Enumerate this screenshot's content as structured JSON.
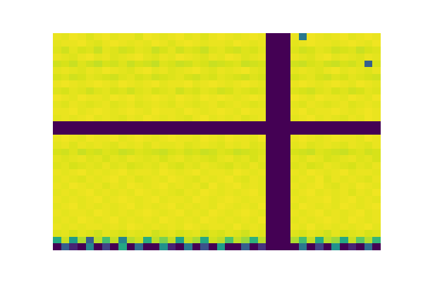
{
  "chart_data": {
    "type": "heatmap",
    "color": "Viridis",
    "tick_labels": false,
    "zlim": [
      0,
      100
    ],
    "cells": [
      [
        97,
        96,
        98,
        97,
        95,
        97,
        98,
        96,
        97,
        97,
        95,
        98,
        97,
        96,
        97,
        98,
        96,
        97,
        95,
        97,
        98,
        97,
        96,
        97,
        98,
        97,
        0,
        0,
        0,
        97,
        40,
        98,
        97,
        96,
        97,
        98,
        96,
        97,
        98,
        97
      ],
      [
        96,
        97,
        97,
        98,
        96,
        95,
        97,
        98,
        97,
        96,
        97,
        96,
        98,
        97,
        95,
        97,
        98,
        97,
        96,
        97,
        97,
        96,
        98,
        97,
        96,
        97,
        0,
        0,
        0,
        96,
        97,
        98,
        97,
        97,
        96,
        97,
        98,
        97,
        96,
        98
      ],
      [
        95,
        93,
        96,
        94,
        95,
        92,
        96,
        95,
        93,
        94,
        96,
        95,
        92,
        94,
        96,
        93,
        95,
        94,
        92,
        95,
        96,
        94,
        93,
        95,
        94,
        96,
        0,
        0,
        0,
        95,
        93,
        94,
        96,
        95,
        93,
        94,
        95,
        92,
        94,
        95
      ],
      [
        97,
        96,
        95,
        97,
        98,
        96,
        97,
        95,
        96,
        97,
        98,
        96,
        95,
        97,
        96,
        98,
        97,
        96,
        95,
        97,
        96,
        98,
        97,
        95,
        96,
        97,
        0,
        0,
        0,
        97,
        96,
        95,
        97,
        98,
        96,
        97,
        96,
        95,
        97,
        96
      ],
      [
        93,
        94,
        92,
        95,
        93,
        91,
        94,
        93,
        95,
        92,
        94,
        93,
        91,
        95,
        94,
        92,
        93,
        95,
        94,
        92,
        93,
        94,
        95,
        92,
        93,
        94,
        0,
        0,
        0,
        93,
        92,
        94,
        95,
        93,
        92,
        94,
        93,
        95,
        30,
        94
      ],
      [
        96,
        97,
        96,
        95,
        97,
        96,
        98,
        97,
        96,
        95,
        97,
        98,
        96,
        97,
        95,
        96,
        97,
        98,
        96,
        95,
        97,
        96,
        97,
        98,
        96,
        95,
        0,
        0,
        0,
        96,
        97,
        96,
        95,
        97,
        98,
        96,
        97,
        96,
        95,
        97
      ],
      [
        94,
        95,
        93,
        94,
        96,
        95,
        94,
        93,
        95,
        96,
        94,
        95,
        93,
        94,
        95,
        96,
        94,
        93,
        95,
        94,
        96,
        95,
        94,
        93,
        95,
        94,
        0,
        0,
        0,
        94,
        95,
        96,
        94,
        93,
        95,
        94,
        96,
        95,
        94,
        93
      ],
      [
        97,
        98,
        97,
        96,
        97,
        98,
        97,
        96,
        98,
        97,
        96,
        97,
        98,
        96,
        97,
        97,
        98,
        96,
        97,
        98,
        97,
        96,
        97,
        98,
        97,
        96,
        0,
        0,
        0,
        97,
        98,
        97,
        96,
        97,
        98,
        97,
        96,
        98,
        97,
        96
      ],
      [
        95,
        94,
        96,
        95,
        93,
        95,
        96,
        94,
        95,
        93,
        95,
        96,
        94,
        95,
        96,
        93,
        95,
        94,
        96,
        95,
        93,
        94,
        96,
        95,
        94,
        95,
        0,
        0,
        0,
        95,
        94,
        93,
        95,
        96,
        94,
        95,
        93,
        94,
        96,
        95
      ],
      [
        98,
        97,
        96,
        98,
        97,
        97,
        96,
        98,
        97,
        98,
        96,
        97,
        98,
        97,
        96,
        98,
        97,
        96,
        98,
        97,
        98,
        97,
        96,
        97,
        98,
        97,
        0,
        0,
        0,
        98,
        97,
        96,
        98,
        97,
        97,
        96,
        98,
        97,
        96,
        98
      ],
      [
        96,
        95,
        97,
        96,
        95,
        96,
        97,
        95,
        96,
        97,
        95,
        96,
        97,
        96,
        95,
        97,
        96,
        95,
        96,
        97,
        95,
        96,
        97,
        96,
        95,
        96,
        0,
        0,
        0,
        96,
        95,
        97,
        96,
        95,
        96,
        97,
        95,
        96,
        97,
        96
      ],
      [
        97,
        97,
        98,
        96,
        97,
        98,
        97,
        96,
        97,
        98,
        97,
        96,
        98,
        97,
        97,
        96,
        98,
        97,
        96,
        97,
        98,
        97,
        96,
        98,
        97,
        97,
        0,
        0,
        0,
        97,
        98,
        96,
        97,
        97,
        98,
        97,
        96,
        97,
        98,
        97
      ],
      [
        96,
        97,
        96,
        97,
        98,
        96,
        97,
        96,
        95,
        97,
        96,
        98,
        97,
        96,
        97,
        96,
        95,
        97,
        98,
        96,
        97,
        96,
        97,
        95,
        96,
        97,
        0,
        0,
        0,
        96,
        97,
        98,
        96,
        97,
        96,
        95,
        97,
        96,
        98,
        97
      ],
      [
        0,
        0,
        0,
        0,
        0,
        0,
        0,
        0,
        0,
        0,
        0,
        0,
        0,
        0,
        0,
        0,
        0,
        0,
        0,
        0,
        0,
        0,
        0,
        0,
        0,
        0,
        0,
        0,
        0,
        0,
        0,
        0,
        0,
        0,
        0,
        0,
        0,
        0,
        0,
        0
      ],
      [
        0,
        0,
        0,
        0,
        0,
        0,
        0,
        0,
        0,
        0,
        0,
        0,
        0,
        0,
        0,
        0,
        0,
        0,
        0,
        0,
        0,
        0,
        0,
        0,
        0,
        0,
        0,
        0,
        0,
        0,
        0,
        0,
        0,
        0,
        0,
        0,
        0,
        0,
        0,
        0
      ],
      [
        97,
        98,
        97,
        96,
        98,
        97,
        97,
        98,
        96,
        97,
        98,
        97,
        96,
        97,
        98,
        97,
        97,
        96,
        98,
        97,
        96,
        98,
        97,
        97,
        96,
        98,
        0,
        0,
        0,
        97,
        98,
        97,
        96,
        97,
        98,
        97,
        97,
        96,
        98,
        97
      ],
      [
        96,
        97,
        95,
        97,
        96,
        97,
        96,
        95,
        97,
        96,
        97,
        95,
        97,
        96,
        96,
        97,
        95,
        96,
        97,
        96,
        95,
        97,
        96,
        97,
        95,
        96,
        0,
        0,
        0,
        96,
        97,
        95,
        96,
        97,
        96,
        95,
        97,
        96,
        95,
        97
      ],
      [
        94,
        93,
        95,
        92,
        94,
        93,
        95,
        94,
        92,
        93,
        95,
        94,
        93,
        92,
        94,
        95,
        93,
        94,
        92,
        93,
        95,
        94,
        92,
        93,
        94,
        95,
        0,
        0,
        0,
        94,
        93,
        92,
        95,
        94,
        93,
        92,
        94,
        95,
        93,
        94
      ],
      [
        96,
        95,
        96,
        97,
        95,
        96,
        94,
        96,
        95,
        97,
        96,
        95,
        96,
        94,
        96,
        97,
        95,
        96,
        95,
        94,
        96,
        97,
        95,
        96,
        94,
        96,
        0,
        0,
        0,
        96,
        95,
        97,
        96,
        94,
        95,
        96,
        97,
        95,
        96,
        94
      ],
      [
        95,
        96,
        94,
        95,
        96,
        95,
        97,
        95,
        96,
        94,
        95,
        96,
        95,
        97,
        95,
        94,
        96,
        95,
        97,
        96,
        95,
        94,
        96,
        95,
        97,
        95,
        0,
        0,
        0,
        95,
        96,
        94,
        95,
        97,
        96,
        95,
        94,
        96,
        95,
        97
      ],
      [
        97,
        96,
        97,
        98,
        96,
        97,
        96,
        97,
        98,
        96,
        97,
        97,
        96,
        98,
        97,
        96,
        97,
        98,
        96,
        97,
        97,
        96,
        98,
        97,
        96,
        97,
        0,
        0,
        0,
        97,
        96,
        98,
        97,
        96,
        97,
        98,
        96,
        97,
        97,
        96
      ],
      [
        96,
        97,
        96,
        95,
        97,
        96,
        97,
        98,
        96,
        97,
        95,
        96,
        97,
        96,
        98,
        97,
        96,
        95,
        97,
        96,
        97,
        98,
        96,
        95,
        97,
        96,
        0,
        0,
        0,
        96,
        97,
        96,
        98,
        95,
        97,
        96,
        97,
        96,
        95,
        97
      ],
      [
        97,
        96,
        98,
        97,
        96,
        97,
        95,
        97,
        96,
        98,
        97,
        96,
        97,
        98,
        96,
        97,
        96,
        97,
        95,
        98,
        96,
        97,
        98,
        96,
        97,
        96,
        0,
        0,
        0,
        97,
        96,
        97,
        98,
        96,
        95,
        97,
        96,
        98,
        97,
        96
      ],
      [
        96,
        97,
        96,
        97,
        98,
        96,
        97,
        96,
        97,
        96,
        98,
        97,
        96,
        97,
        96,
        95,
        97,
        96,
        98,
        97,
        96,
        97,
        96,
        97,
        98,
        96,
        0,
        0,
        0,
        96,
        97,
        98,
        96,
        97,
        96,
        97,
        95,
        97,
        96,
        98
      ],
      [
        97,
        96,
        97,
        96,
        97,
        98,
        96,
        97,
        98,
        97,
        96,
        97,
        98,
        96,
        97,
        97,
        96,
        98,
        97,
        96,
        97,
        98,
        97,
        96,
        97,
        97,
        0,
        0,
        0,
        97,
        96,
        97,
        97,
        98,
        96,
        97,
        98,
        96,
        97,
        96
      ],
      [
        96,
        97,
        98,
        96,
        97,
        96,
        97,
        96,
        97,
        98,
        96,
        97,
        96,
        97,
        98,
        96,
        97,
        96,
        97,
        96,
        98,
        97,
        96,
        97,
        96,
        98,
        0,
        0,
        0,
        96,
        98,
        97,
        96,
        97,
        96,
        98,
        97,
        96,
        97,
        98
      ],
      [
        97,
        96,
        97,
        97,
        96,
        98,
        97,
        96,
        97,
        96,
        97,
        98,
        97,
        96,
        97,
        98,
        96,
        97,
        96,
        98,
        97,
        96,
        97,
        98,
        97,
        96,
        0,
        0,
        0,
        97,
        96,
        97,
        98,
        96,
        97,
        96,
        97,
        98,
        96,
        97
      ],
      [
        96,
        97,
        96,
        98,
        97,
        96,
        97,
        98,
        96,
        97,
        96,
        97,
        96,
        98,
        97,
        96,
        97,
        96,
        98,
        97,
        96,
        97,
        96,
        97,
        96,
        98,
        0,
        0,
        0,
        96,
        97,
        96,
        97,
        98,
        97,
        96,
        98,
        97,
        96,
        97
      ],
      [
        97,
        96,
        97,
        96,
        97,
        97,
        96,
        97,
        96,
        98,
        97,
        96,
        97,
        96,
        97,
        96,
        98,
        97,
        96,
        97,
        97,
        96,
        98,
        96,
        97,
        96,
        0,
        0,
        0,
        97,
        96,
        98,
        96,
        97,
        96,
        97,
        96,
        97,
        98,
        96
      ],
      [
        95,
        96,
        94,
        96,
        95,
        93,
        96,
        95,
        94,
        96,
        95,
        96,
        93,
        95,
        96,
        94,
        95,
        96,
        93,
        95,
        94,
        96,
        95,
        93,
        96,
        95,
        0,
        0,
        0,
        95,
        94,
        96,
        95,
        93,
        96,
        94,
        95,
        96,
        94,
        95
      ],
      [
        60,
        92,
        55,
        88,
        30,
        90,
        70,
        91,
        45,
        89,
        93,
        62,
        90,
        80,
        91,
        58,
        92,
        87,
        60,
        93,
        90,
        72,
        91,
        85,
        64,
        90,
        0,
        0,
        0,
        88,
        70,
        91,
        62,
        90,
        85,
        60,
        92,
        75,
        89,
        66
      ],
      [
        0,
        30,
        10,
        0,
        45,
        0,
        20,
        0,
        60,
        0,
        35,
        0,
        0,
        50,
        10,
        0,
        40,
        0,
        25,
        0,
        55,
        0,
        0,
        30,
        0,
        15,
        0,
        0,
        0,
        0,
        40,
        0,
        20,
        0,
        50,
        0,
        10,
        0,
        35,
        0
      ]
    ]
  }
}
